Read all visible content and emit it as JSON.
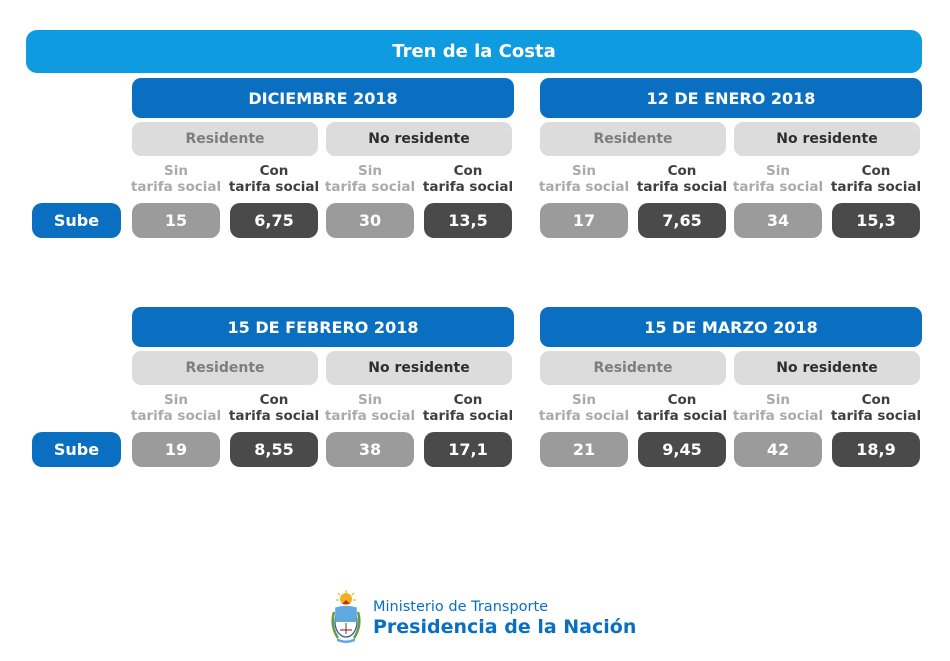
{
  "title": "Tren de la Costa",
  "row_label": "Sube",
  "group_labels": {
    "resident": "Residente",
    "non_resident": "No residente"
  },
  "sub_labels": {
    "sin_1": "Sin",
    "sin_2": "tarifa social",
    "con_1": "Con",
    "con_2": "tarifa social"
  },
  "periods": [
    {
      "label": "DICIEMBRE 2018",
      "values": [
        "15",
        "6,75",
        "30",
        "13,5"
      ]
    },
    {
      "label": "12 DE ENERO 2018",
      "values": [
        "17",
        "7,65",
        "34",
        "15,3"
      ]
    },
    {
      "label": "15 DE FEBRERO 2018",
      "values": [
        "19",
        "8,55",
        "38",
        "17,1"
      ]
    },
    {
      "label": "15 DE MARZO 2018",
      "values": [
        "21",
        "9,45",
        "42",
        "18,9"
      ]
    }
  ],
  "footer": {
    "line1": "Ministerio de Transporte",
    "line2": "Presidencia de la Nación"
  },
  "colors": {
    "title_bg": "#0f9be0",
    "period_bg": "#0a6fc1",
    "group_bg": "#dcdcdc",
    "sin_value_bg": "#9b9b9b",
    "con_value_bg": "#4a4a4a"
  },
  "icons": {
    "emblem": "argentina-coat-of-arms-icon"
  }
}
